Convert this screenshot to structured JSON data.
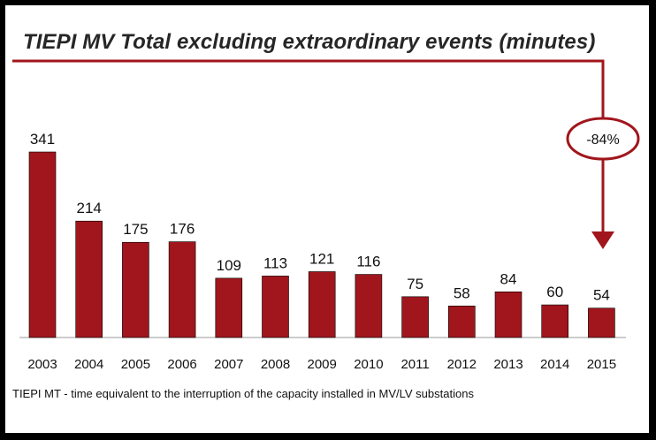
{
  "title": "TIEPI MV Total excluding extraordinary events (minutes)",
  "footnote": "TIEPI MT - time equivalent to the interruption of the capacity installed in MV/LV substations",
  "annotation": {
    "label": "-84%"
  },
  "colors": {
    "bar": "#A0161C",
    "accent": "#A0161C",
    "axis": "#9A9A9A",
    "frame": "#000000",
    "background": "#FFFFFF"
  },
  "chart_data": {
    "type": "bar",
    "categories": [
      "2003",
      "2004",
      "2005",
      "2006",
      "2007",
      "2008",
      "2009",
      "2010",
      "2011",
      "2012",
      "2013",
      "2014",
      "2015"
    ],
    "values": [
      341,
      214,
      175,
      176,
      109,
      113,
      121,
      116,
      75,
      58,
      84,
      60,
      54
    ],
    "title": "TIEPI MV Total excluding extraordinary events (minutes)",
    "xlabel": "",
    "ylabel": "",
    "ylim": [
      0,
      341
    ],
    "grid": false,
    "legend": "none"
  }
}
